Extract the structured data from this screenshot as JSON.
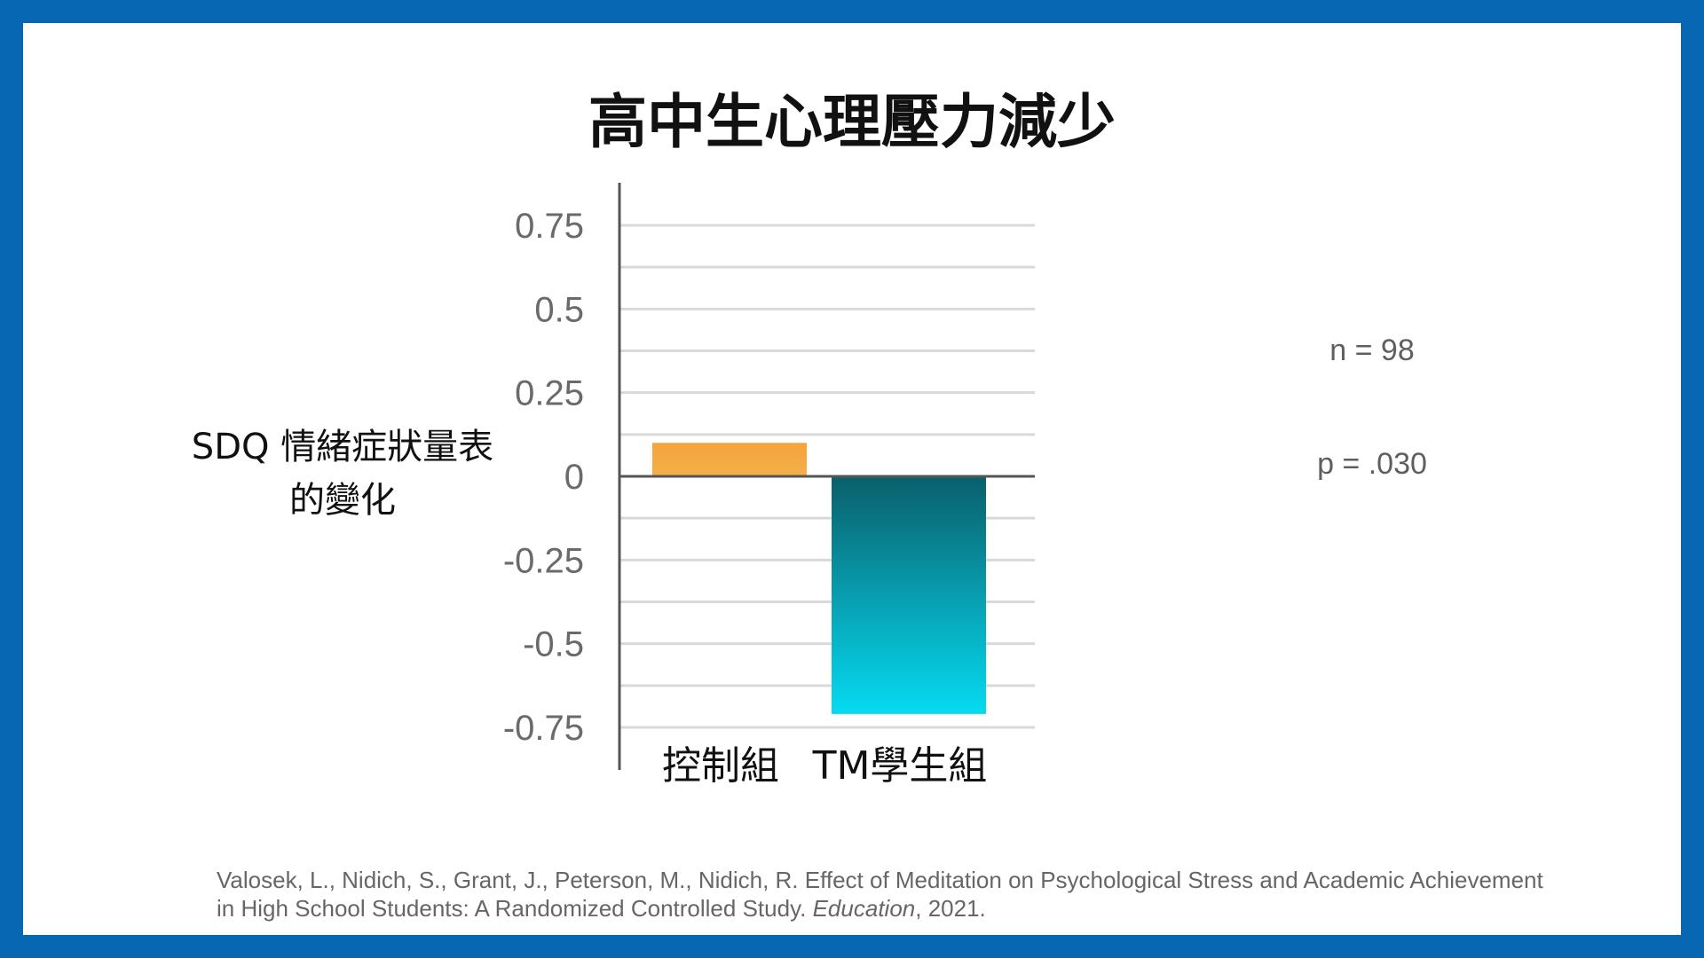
{
  "slide": {
    "title": "高中生心理壓力減少",
    "ylabel_line1": "SDQ 情緒症狀量表",
    "ylabel_line2": "的變化",
    "stat_n": "n = 98",
    "stat_p": "p = .030",
    "citation_line1": "Valosek, L., Nidich, S., Grant, J., Peterson, M., Nidich, R.  Effect of Meditation on Psychological Stress and Academic Achievement",
    "citation_line2_pre": "in High School Students: A Randomized Controlled Study.",
    "citation_journal": "Education",
    "citation_year": ", 2021."
  },
  "colors": {
    "frame": "#0867b3",
    "control_top": "#f6a33a",
    "control_bottom": "#f3b04a",
    "tm_top": "#0a5f6b",
    "tm_bottom": "#05dbf2",
    "grid": "#d9d9d9",
    "axis": "#555555"
  },
  "chart_data": {
    "type": "bar",
    "title": "高中生心理壓力減少",
    "ylabel": "SDQ 情緒症狀量表 的變化",
    "categories": [
      "控制組",
      "TM學生組"
    ],
    "values": [
      0.1,
      -0.71
    ],
    "yticks": [
      0.75,
      0.5,
      0.25,
      0,
      -0.25,
      -0.5,
      -0.75
    ],
    "ytick_labels": [
      "0.75",
      "0.5",
      "0.25",
      "0",
      "-0.25",
      "-0.5",
      "-0.75"
    ],
    "ylim": [
      -0.75,
      0.75
    ],
    "grid_step": 0.125,
    "grid": true,
    "legend": "none",
    "annotations": [
      "n = 98",
      "p = .030"
    ]
  }
}
